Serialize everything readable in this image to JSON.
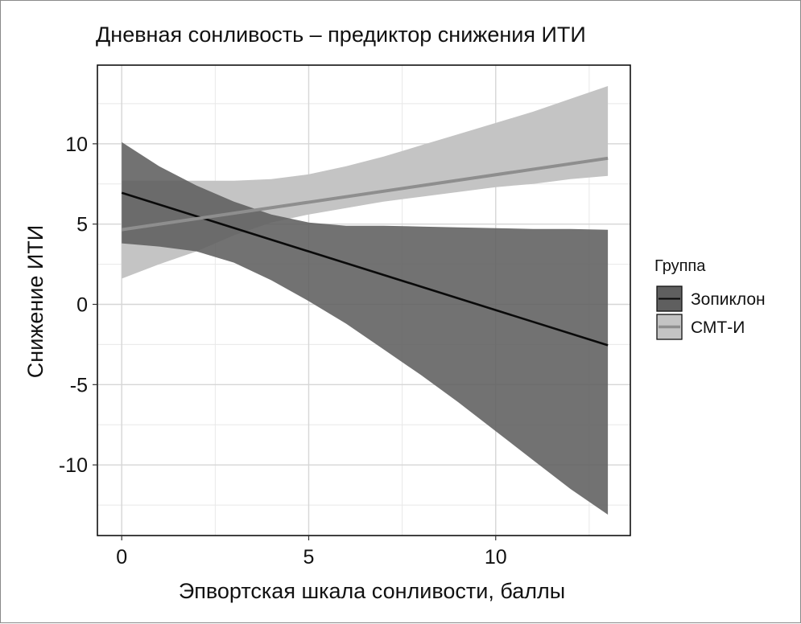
{
  "chart_data": {
    "type": "line",
    "title": "Дневная сонливость – предиктор снижения ИТИ",
    "xlabel": "Эпвортская шкала сонливости, баллы",
    "ylabel": "Снижение ИТИ",
    "xlim": [
      -0.65,
      13.6
    ],
    "ylim": [
      -14.4,
      14.9
    ],
    "x_ticks": [
      0,
      5,
      10
    ],
    "y_ticks": [
      -10,
      -5,
      0,
      5,
      10
    ],
    "x_tick_labels": [
      "0",
      "5",
      "10"
    ],
    "y_tick_labels": [
      "-10",
      "-5",
      "0",
      "5",
      "10"
    ],
    "grid": true,
    "legend": {
      "title": "Группа",
      "position": "right"
    },
    "series": [
      {
        "name": "Зопиклон",
        "fill_color": "#5f5f5f",
        "line_color": "#0a0a0a",
        "line": {
          "x": [
            0,
            13
          ],
          "y": [
            6.95,
            -2.55
          ]
        },
        "band": {
          "x": [
            0,
            1,
            2,
            3,
            4,
            5,
            6,
            7,
            8,
            9,
            10,
            11,
            12,
            13
          ],
          "upper": [
            10.1,
            8.6,
            7.4,
            6.4,
            5.6,
            5.1,
            4.9,
            4.9,
            4.85,
            4.8,
            4.75,
            4.7,
            4.7,
            4.65
          ],
          "lower": [
            3.8,
            3.6,
            3.3,
            2.6,
            1.5,
            0.2,
            -1.2,
            -2.8,
            -4.4,
            -6.1,
            -7.9,
            -9.7,
            -11.5,
            -13.1
          ]
        }
      },
      {
        "name": "СМТ-И",
        "fill_color": "#c4c4c4",
        "line_color": "#8e8e8e",
        "line": {
          "x": [
            0,
            13
          ],
          "y": [
            4.65,
            9.1
          ]
        },
        "band": {
          "x": [
            0,
            1,
            2,
            3,
            4,
            5,
            6,
            7,
            8,
            9,
            10,
            11,
            12,
            13
          ],
          "upper": [
            7.7,
            7.7,
            7.7,
            7.7,
            7.8,
            8.1,
            8.6,
            9.2,
            9.9,
            10.6,
            11.3,
            12.0,
            12.8,
            13.6
          ],
          "lower": [
            1.6,
            2.5,
            3.3,
            4.3,
            5.1,
            5.6,
            6.0,
            6.4,
            6.7,
            7.0,
            7.3,
            7.5,
            7.8,
            8.0
          ]
        }
      }
    ]
  }
}
